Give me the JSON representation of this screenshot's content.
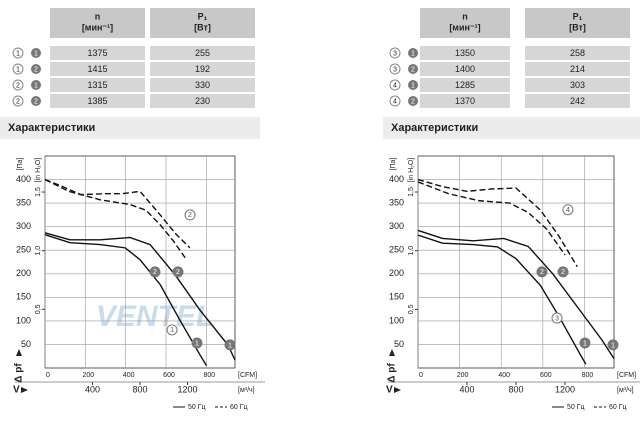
{
  "tables": [
    {
      "header": [
        "n",
        "[мин⁻¹]",
        "P₁",
        "[Вт]"
      ],
      "rows": [
        {
          "markers": [
            "1",
            "1"
          ],
          "n": 1375,
          "p": 255
        },
        {
          "markers": [
            "1",
            "2"
          ],
          "n": 1415,
          "p": 192
        },
        {
          "markers": [
            "2",
            "1"
          ],
          "n": 1315,
          "p": 330
        },
        {
          "markers": [
            "2",
            "2"
          ],
          "n": 1385,
          "p": 230
        }
      ]
    },
    {
      "header": [
        "n",
        "[мин⁻¹]",
        "P₁",
        "[Вт]"
      ],
      "rows": [
        {
          "markers": [
            "3",
            "1"
          ],
          "n": 1350,
          "p": 258
        },
        {
          "markers": [
            "3",
            "2"
          ],
          "n": 1400,
          "p": 214
        },
        {
          "markers": [
            "4",
            "1"
          ],
          "n": 1285,
          "p": 303
        },
        {
          "markers": [
            "4",
            "2"
          ],
          "n": 1370,
          "p": 242
        }
      ]
    }
  ],
  "section_titles": [
    "Характеристики",
    "Характеристики"
  ],
  "chart_data": [
    {
      "type": "line",
      "y_label": "Δ pf",
      "y_unit": "[Па]",
      "y2_unit": "[in H₂O]",
      "x_label": "V",
      "x_unit": "[м³/ч]",
      "x2_unit": "[CFM]",
      "watermark": "VENTEL",
      "xlim": [
        0,
        1600
      ],
      "xticks": [
        400,
        800,
        1200
      ],
      "x2lim": [
        0,
        942
      ],
      "x2ticks": [
        0,
        200,
        400,
        600,
        800
      ],
      "ylim": [
        0,
        450
      ],
      "yticks": [
        50,
        100,
        150,
        200,
        250,
        300,
        350,
        400
      ],
      "y2lim": [
        0,
        1.807
      ],
      "y2ticks": [
        {
          "value": 0.5,
          "label": "0,5"
        },
        {
          "value": 1.0,
          "label": "1,0"
        },
        {
          "value": 1.5,
          "label": "1,5"
        }
      ],
      "legend": [
        {
          "name": "50 Гц",
          "dash": false
        },
        {
          "name": "60 Гц",
          "dash": true
        }
      ],
      "series": [
        {
          "dash": true,
          "color": "#111",
          "x": [
            0,
            150,
            300,
            500,
            650,
            800,
            970,
            1100,
            1220
          ],
          "values": [
            400,
            385,
            368,
            370,
            370,
            375,
            325,
            285,
            255
          ]
        },
        {
          "dash": true,
          "color": "#111",
          "x": [
            0,
            200,
            465,
            715,
            850,
            970,
            1080,
            1180
          ],
          "values": [
            400,
            375,
            357,
            347,
            335,
            304,
            270,
            234
          ]
        },
        {
          "dash": false,
          "color": "#111",
          "x": [
            0,
            210,
            465,
            715,
            885,
            1095,
            1305,
            1540,
            1600
          ],
          "values": [
            287,
            272,
            272,
            277,
            262,
            198,
            123,
            49,
            17
          ]
        },
        {
          "dash": false,
          "color": "#111",
          "x": [
            0,
            210,
            465,
            675,
            800,
            970,
            1135,
            1305,
            1360
          ],
          "values": [
            283,
            266,
            262,
            255,
            230,
            177,
            102,
            28,
            5
          ]
        }
      ],
      "annotations": [
        {
          "label": "2",
          "x": 926,
          "y": 204,
          "filled": true
        },
        {
          "label": "2",
          "x": 1120,
          "y": 204,
          "filled": true
        },
        {
          "label": "1",
          "x": 1280,
          "y": 53,
          "filled": true
        },
        {
          "label": "1",
          "x": 1558,
          "y": 49,
          "filled": true
        },
        {
          "label": "2",
          "x": 1221,
          "y": 325,
          "filled": false
        },
        {
          "label": "1",
          "x": 1070,
          "y": 81,
          "filled": false
        }
      ]
    },
    {
      "type": "line",
      "y_label": "Δ pf",
      "y_unit": "[Па]",
      "y2_unit": "[in H₂O]",
      "x_label": "V",
      "x_unit": "[м³/ч]",
      "x2_unit": "[CFM]",
      "xlim": [
        0,
        1600
      ],
      "xticks": [
        400,
        800,
        1200
      ],
      "x2lim": [
        0,
        942
      ],
      "x2ticks": [
        0,
        200,
        400,
        600,
        800
      ],
      "ylim": [
        0,
        450
      ],
      "yticks": [
        50,
        100,
        150,
        200,
        250,
        300,
        350,
        400
      ],
      "y2lim": [
        0,
        1.807
      ],
      "y2ticks": [
        {
          "value": 0.5,
          "label": "0,5"
        },
        {
          "value": 1.0,
          "label": "1,0"
        },
        {
          "value": 1.5,
          "label": "1,5"
        }
      ],
      "legend": [
        {
          "name": "50 Гц",
          "dash": false
        },
        {
          "name": "60 Гц",
          "dash": true
        }
      ],
      "series": [
        {
          "dash": true,
          "color": "#111",
          "x": [
            0,
            200,
            400,
            600,
            800,
            1000,
            1150,
            1300
          ],
          "values": [
            400,
            385,
            375,
            380,
            382,
            335,
            280,
            215
          ]
        },
        {
          "dash": true,
          "color": "#111",
          "x": [
            0,
            250,
            500,
            750,
            900,
            1050,
            1200
          ],
          "values": [
            395,
            370,
            355,
            350,
            330,
            295,
            240
          ]
        },
        {
          "dash": false,
          "color": "#111",
          "x": [
            0,
            200,
            450,
            700,
            900,
            1100,
            1300,
            1500,
            1600
          ],
          "values": [
            292,
            275,
            270,
            275,
            258,
            200,
            130,
            60,
            20
          ]
        },
        {
          "dash": false,
          "color": "#111",
          "x": [
            0,
            200,
            450,
            650,
            800,
            1000,
            1150,
            1300,
            1370
          ],
          "values": [
            282,
            265,
            262,
            257,
            232,
            175,
            110,
            40,
            8
          ]
        }
      ],
      "annotations": [
        {
          "label": "2",
          "x": 1012,
          "y": 204,
          "filled": true
        },
        {
          "label": "2",
          "x": 1184,
          "y": 204,
          "filled": true
        },
        {
          "label": "1",
          "x": 1363,
          "y": 53,
          "filled": true
        },
        {
          "label": "1",
          "x": 1592,
          "y": 49,
          "filled": true
        },
        {
          "label": "4",
          "x": 1224,
          "y": 336,
          "filled": false
        },
        {
          "label": "3",
          "x": 1135,
          "y": 106,
          "filled": false
        }
      ]
    }
  ]
}
